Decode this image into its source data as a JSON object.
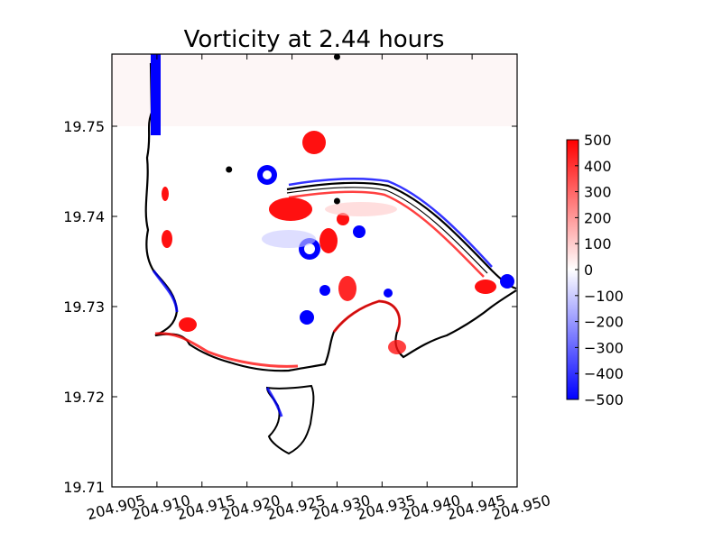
{
  "chart_data": {
    "type": "heatmap",
    "title": "Vorticity at 2.44 hours",
    "xlabel": "",
    "ylabel": "",
    "xlim": [
      204.905,
      204.95
    ],
    "ylim": [
      19.71,
      19.758
    ],
    "x_ticks": [
      "204.905",
      "204.910",
      "204.915",
      "204.920",
      "204.925",
      "204.930",
      "204.935",
      "204.940",
      "204.945",
      "204.950"
    ],
    "y_ticks": [
      "19.71",
      "19.72",
      "19.73",
      "19.74",
      "19.75"
    ],
    "colorbar": {
      "min": -500,
      "max": 500,
      "ticks": [
        "500",
        "400",
        "300",
        "200",
        "100",
        "0",
        "−100",
        "−200",
        "−300",
        "−400",
        "−500"
      ],
      "colormap": "bwr",
      "colors": {
        "low": "#0000ff",
        "mid": "#ffffff",
        "high": "#ff0000"
      }
    },
    "markers": [
      {
        "x": 204.93,
        "y": 19.7577
      },
      {
        "x": 204.918,
        "y": 19.7452
      },
      {
        "x": 204.93,
        "y": 19.7417
      }
    ],
    "coastline_color": "#000000",
    "notable_vortices": [
      {
        "x": 204.9252,
        "y": 19.7487,
        "sign": "positive"
      },
      {
        "x": 204.9215,
        "y": 19.7452,
        "sign": "negative"
      },
      {
        "x": 204.9267,
        "y": 19.7362,
        "sign": "negative"
      },
      {
        "x": 204.9222,
        "y": 19.7408,
        "sign": "positive"
      },
      {
        "x": 204.9217,
        "y": 19.7287,
        "sign": "negative"
      }
    ]
  }
}
